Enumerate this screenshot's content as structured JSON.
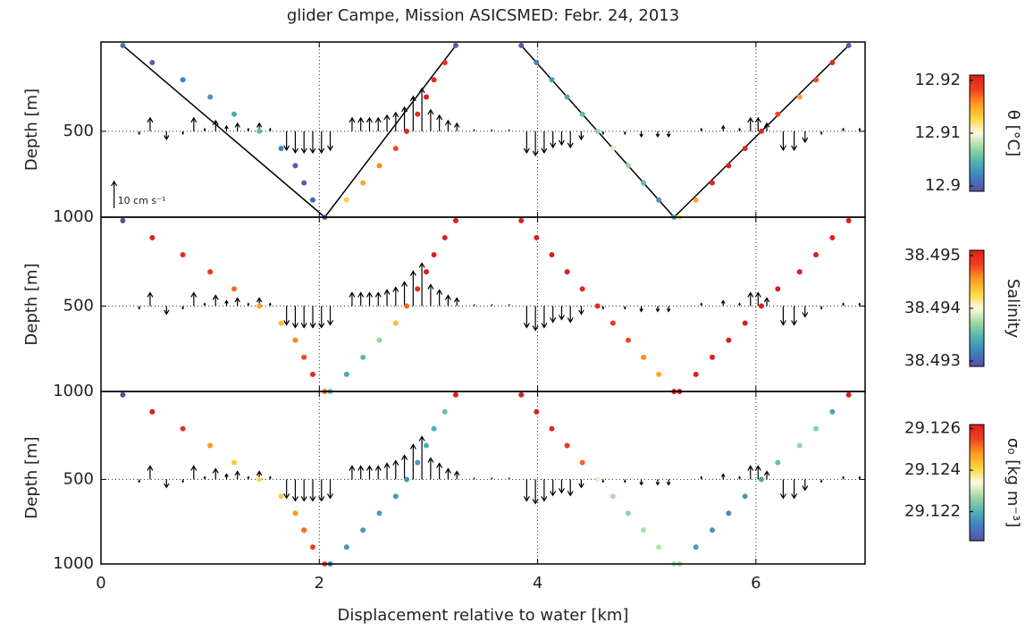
{
  "chart_data": [
    {
      "type": "scatter",
      "title": "glider Campe, Mission ASICSMED: Febr. 24, 2013",
      "ylabel": "Depth [m]",
      "colorbar_label": "θ [°C]",
      "xlim": [
        0,
        7
      ],
      "xticks": [
        0,
        2,
        4,
        6
      ],
      "ylim": [
        1000,
        -20
      ],
      "yticks": [
        500,
        1000
      ],
      "grid": true,
      "clim": [
        12.899,
        12.921
      ],
      "cticks": [
        12.9,
        12.91,
        12.92
      ],
      "colormap": [
        "#5a4ea0",
        "#3f7fc0",
        "#4fb3b0",
        "#9fd8a0",
        "#fbfbe0",
        "#ffd640",
        "#ff9a20",
        "#f04020",
        "#d9201e"
      ],
      "x": [
        0.2,
        0.47,
        0.75,
        1.0,
        1.22,
        1.45,
        1.65,
        1.78,
        1.86,
        1.94,
        2.05,
        2.1,
        2.25,
        2.4,
        2.55,
        2.7,
        2.8,
        2.9,
        2.98,
        3.05,
        3.15,
        3.25,
        3.85,
        3.99,
        4.13,
        4.27,
        4.41,
        4.55,
        4.69,
        4.83,
        4.97,
        5.11,
        5.25,
        5.3,
        5.45,
        5.6,
        5.75,
        5.9,
        6.05,
        6.2,
        6.4,
        6.55,
        6.7,
        6.85
      ],
      "y": [
        0,
        100,
        200,
        300,
        400,
        500,
        600,
        700,
        800,
        900,
        1000,
        1000,
        900,
        800,
        700,
        600,
        500,
        400,
        300,
        200,
        100,
        0,
        0,
        100,
        200,
        300,
        400,
        500,
        600,
        700,
        800,
        900,
        1000,
        1000,
        900,
        800,
        700,
        600,
        500,
        400,
        300,
        200,
        100,
        0
      ],
      "values": [
        12.901,
        12.9,
        12.902,
        12.903,
        12.904,
        12.905,
        12.902,
        12.9,
        12.9,
        12.9,
        12.9,
        12.91,
        12.913,
        12.915,
        12.916,
        12.918,
        12.92,
        12.92,
        12.921,
        12.92,
        12.92,
        12.9,
        12.9,
        12.902,
        12.903,
        12.904,
        12.905,
        12.907,
        12.909,
        12.907,
        12.905,
        12.903,
        12.904,
        12.912,
        12.915,
        12.92,
        12.921,
        12.92,
        12.92,
        12.918,
        12.915,
        12.918,
        12.92,
        12.9
      ],
      "lines": [
        {
          "x": [
            0.2,
            2.05,
            3.25
          ],
          "y": [
            0,
            1000,
            0
          ]
        },
        {
          "x": [
            3.85,
            5.25,
            6.85
          ],
          "y": [
            0,
            1000,
            0
          ]
        }
      ],
      "ref_arrow": {
        "value": 10,
        "label": "10 cm s⁻¹"
      },
      "arrow_x": [
        0.35,
        0.45,
        0.6,
        0.75,
        0.85,
        0.95,
        1.05,
        1.15,
        1.25,
        1.35,
        1.45,
        1.55,
        1.7,
        1.78,
        1.86,
        1.94,
        2.02,
        2.1,
        2.3,
        2.38,
        2.46,
        2.54,
        2.62,
        2.7,
        2.78,
        2.86,
        2.94,
        3.02,
        3.1,
        3.18,
        3.26,
        3.42,
        3.58,
        3.74,
        3.9,
        3.98,
        4.06,
        4.14,
        4.22,
        4.3,
        4.4,
        4.6,
        4.8,
        4.95,
        5.1,
        5.2,
        5.5,
        5.7,
        5.85,
        5.95,
        6.02,
        6.1,
        6.25,
        6.35,
        6.45,
        6.6,
        6.8,
        6.95
      ],
      "arrow_v": [
        -1,
        5,
        -3,
        -1,
        5,
        1,
        4,
        2,
        3,
        1,
        3,
        1,
        -7,
        -8,
        -8,
        -8,
        -8,
        -7,
        5,
        5,
        5,
        5,
        6,
        7,
        9,
        13,
        16,
        8,
        6,
        4,
        3,
        0.5,
        0.5,
        0.5,
        -8,
        -9,
        -8,
        -6,
        -5,
        -6,
        -3,
        -1,
        -1,
        -2,
        -2,
        -2,
        1,
        2,
        1,
        5,
        5,
        3,
        -7,
        -7,
        -4,
        -1,
        1,
        1
      ]
    },
    {
      "type": "scatter",
      "ylabel": "Depth [m]",
      "colorbar_label": "Salinity",
      "xlim": [
        0,
        7
      ],
      "xticks": [
        0,
        2,
        4,
        6
      ],
      "ylim": [
        1000,
        -20
      ],
      "yticks": [
        500,
        1000
      ],
      "grid": true,
      "clim": [
        38.4929,
        38.4951
      ],
      "cticks": [
        38.493,
        38.494,
        38.495
      ],
      "colormap": [
        "#5a4ea0",
        "#3f7fc0",
        "#4fb3b0",
        "#9fd8a0",
        "#fbfbe0",
        "#ffd640",
        "#ff9a20",
        "#f04020",
        "#d9201e"
      ],
      "x": [
        0.2,
        0.47,
        0.75,
        1.0,
        1.22,
        1.45,
        1.65,
        1.78,
        1.86,
        1.94,
        2.05,
        2.1,
        2.25,
        2.4,
        2.55,
        2.7,
        2.8,
        2.9,
        2.98,
        3.05,
        3.15,
        3.25,
        3.85,
        3.99,
        4.13,
        4.27,
        4.41,
        4.55,
        4.69,
        4.83,
        4.97,
        5.11,
        5.25,
        5.3,
        5.45,
        5.6,
        5.75,
        5.9,
        6.05,
        6.2,
        6.4,
        6.55,
        6.7,
        6.85
      ],
      "y": [
        0,
        100,
        200,
        300,
        400,
        500,
        600,
        700,
        800,
        900,
        1000,
        1000,
        900,
        800,
        700,
        600,
        500,
        400,
        300,
        200,
        100,
        0,
        0,
        100,
        200,
        300,
        400,
        500,
        600,
        700,
        800,
        900,
        1000,
        1000,
        900,
        800,
        700,
        600,
        500,
        400,
        300,
        200,
        100,
        0
      ],
      "values": [
        38.4929,
        38.4951,
        38.495,
        38.4949,
        38.4947,
        38.4945,
        38.4944,
        38.4946,
        38.4948,
        38.495,
        38.4947,
        38.4935,
        38.4934,
        38.4935,
        38.4937,
        38.4944,
        38.4947,
        38.495,
        38.4951,
        38.4951,
        38.4951,
        38.4951,
        38.4951,
        38.4951,
        38.4951,
        38.4951,
        38.495,
        38.495,
        38.4949,
        38.4948,
        38.4946,
        38.4945,
        38.4951,
        38.4951,
        38.4951,
        38.4951,
        38.4951,
        38.4951,
        38.4951,
        38.4951,
        38.4951,
        38.4951,
        38.4951,
        38.4951
      ],
      "arrow_x": [
        0.35,
        0.45,
        0.6,
        0.75,
        0.85,
        0.95,
        1.05,
        1.15,
        1.25,
        1.35,
        1.45,
        1.55,
        1.7,
        1.78,
        1.86,
        1.94,
        2.02,
        2.1,
        2.3,
        2.38,
        2.46,
        2.54,
        2.62,
        2.7,
        2.78,
        2.86,
        2.94,
        3.02,
        3.1,
        3.18,
        3.26,
        3.42,
        3.58,
        3.74,
        3.9,
        3.98,
        4.06,
        4.14,
        4.22,
        4.3,
        4.4,
        4.6,
        4.8,
        4.95,
        5.1,
        5.2,
        5.5,
        5.7,
        5.85,
        5.95,
        6.02,
        6.1,
        6.25,
        6.35,
        6.45,
        6.6,
        6.8,
        6.95
      ],
      "arrow_v": [
        -1,
        5,
        -3,
        -1,
        5,
        1,
        4,
        2,
        3,
        1,
        3,
        1,
        -7,
        -8,
        -8,
        -8,
        -8,
        -7,
        5,
        5,
        5,
        5,
        6,
        7,
        9,
        13,
        16,
        8,
        6,
        4,
        3,
        0.5,
        0.5,
        0.5,
        -8,
        -9,
        -8,
        -6,
        -5,
        -6,
        -3,
        -1,
        -1,
        -2,
        -2,
        -2,
        1,
        2,
        1,
        5,
        5,
        3,
        -7,
        -7,
        -4,
        -1,
        1,
        1
      ]
    },
    {
      "type": "scatter",
      "ylabel": "Depth [m]",
      "xlabel": "Displacement relative to water [km]",
      "colorbar_label": "σ₀ [kg m⁻³]",
      "xlim": [
        0,
        7
      ],
      "xticks": [
        0,
        2,
        4,
        6
      ],
      "ylim": [
        1000,
        -20
      ],
      "yticks": [
        500,
        1000
      ],
      "grid": true,
      "clim": [
        29.1206,
        29.1262
      ],
      "cticks": [
        29.122,
        29.124,
        29.126
      ],
      "colormap": [
        "#5a4ea0",
        "#3f7fc0",
        "#4fb3b0",
        "#9fd8a0",
        "#fbfbe0",
        "#ffd640",
        "#ff9a20",
        "#f04020",
        "#d9201e"
      ],
      "x": [
        0.2,
        0.47,
        0.75,
        1.0,
        1.22,
        1.45,
        1.65,
        1.78,
        1.86,
        1.94,
        2.05,
        2.1,
        2.25,
        2.4,
        2.55,
        2.7,
        2.8,
        2.9,
        2.98,
        3.05,
        3.15,
        3.25,
        3.85,
        3.99,
        4.13,
        4.27,
        4.41,
        4.55,
        4.69,
        4.83,
        4.97,
        5.11,
        5.25,
        5.3,
        5.45,
        5.6,
        5.75,
        5.9,
        6.05,
        6.2,
        6.4,
        6.55,
        6.7,
        6.85
      ],
      "y": [
        0,
        100,
        200,
        300,
        400,
        500,
        600,
        700,
        800,
        900,
        1000,
        1000,
        900,
        800,
        700,
        600,
        500,
        400,
        300,
        200,
        100,
        0,
        0,
        100,
        200,
        300,
        400,
        500,
        600,
        700,
        800,
        900,
        1000,
        1000,
        900,
        800,
        700,
        600,
        500,
        400,
        300,
        200,
        100,
        0
      ],
      "values": [
        29.1206,
        29.1262,
        29.1258,
        29.1248,
        29.1243,
        29.124,
        29.1242,
        29.1248,
        29.1252,
        29.1255,
        29.1254,
        29.1215,
        29.1216,
        29.1217,
        29.1217,
        29.1216,
        29.1216,
        29.1217,
        29.1219,
        29.122,
        29.1222,
        29.1262,
        29.1262,
        29.1262,
        29.126,
        29.1257,
        29.1252,
        29.1232,
        29.1228,
        29.1226,
        29.1228,
        29.1229,
        29.1228,
        29.1228,
        29.1217,
        29.1216,
        29.1215,
        29.1216,
        29.1218,
        29.1222,
        29.1226,
        29.1225,
        29.1218,
        29.1262
      ],
      "arrow_x": [
        0.35,
        0.45,
        0.6,
        0.75,
        0.85,
        0.95,
        1.05,
        1.15,
        1.25,
        1.35,
        1.45,
        1.55,
        1.7,
        1.78,
        1.86,
        1.94,
        2.02,
        2.1,
        2.3,
        2.38,
        2.46,
        2.54,
        2.62,
        2.7,
        2.78,
        2.86,
        2.94,
        3.02,
        3.1,
        3.18,
        3.26,
        3.42,
        3.58,
        3.74,
        3.9,
        3.98,
        4.06,
        4.14,
        4.22,
        4.3,
        4.4,
        4.6,
        4.8,
        4.95,
        5.1,
        5.2,
        5.5,
        5.7,
        5.85,
        5.95,
        6.02,
        6.1,
        6.25,
        6.35,
        6.45,
        6.6,
        6.8,
        6.95
      ],
      "arrow_v": [
        -1,
        5,
        -3,
        -1,
        5,
        1,
        4,
        2,
        3,
        1,
        3,
        1,
        -7,
        -8,
        -8,
        -8,
        -8,
        -7,
        5,
        5,
        5,
        5,
        6,
        7,
        9,
        13,
        16,
        8,
        6,
        4,
        3,
        0.5,
        0.5,
        0.5,
        -8,
        -9,
        -8,
        -6,
        -5,
        -6,
        -3,
        -1,
        -1,
        -2,
        -2,
        -2,
        1,
        2,
        1,
        5,
        5,
        3,
        -7,
        -7,
        -4,
        -1,
        1,
        1
      ]
    }
  ]
}
